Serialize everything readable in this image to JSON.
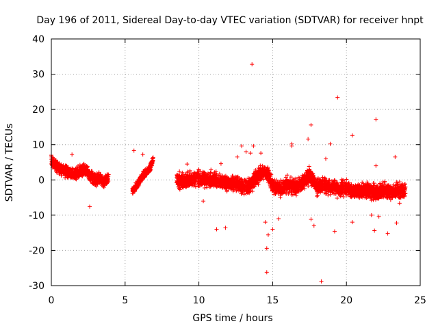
{
  "chart_data": {
    "type": "scatter",
    "title": "Day 196 of 2011, Sidereal Day-to-day VTEC variation (SDTVAR) for receiver hnpt",
    "xlabel": "GPS time / hours",
    "ylabel": "SDTVAR / TECUs",
    "xlim": [
      0,
      25
    ],
    "ylim": [
      -30,
      40
    ],
    "xticks": [
      0,
      5,
      10,
      15,
      20,
      25
    ],
    "yticks": [
      -30,
      -20,
      -10,
      0,
      10,
      20,
      30,
      40
    ],
    "grid": true,
    "marker": "+",
    "color": "#ff0000",
    "segments": [
      {
        "name": "0-4h",
        "x": [
          0.0,
          0.3,
          0.6,
          0.9,
          1.2,
          1.5,
          1.8,
          2.1,
          2.4,
          2.7,
          3.0,
          3.3,
          3.6,
          3.9
        ],
        "y": [
          5.5,
          4.0,
          3.0,
          2.5,
          2.0,
          1.5,
          2.0,
          3.0,
          2.5,
          1.0,
          0.0,
          0.5,
          -0.5,
          0.5
        ],
        "spread": 1.5
      },
      {
        "name": "5.5-6.9h",
        "x": [
          5.5,
          5.7,
          5.9,
          6.1,
          6.3,
          6.5,
          6.7,
          6.9
        ],
        "y": [
          -3.0,
          -2.0,
          -1.0,
          0.5,
          1.5,
          2.5,
          3.5,
          6.0
        ],
        "spread": 1.0
      },
      {
        "name": "8.5-24h",
        "x": [
          8.5,
          9.0,
          9.5,
          10.0,
          10.5,
          11.0,
          11.5,
          12.0,
          12.5,
          13.0,
          13.5,
          14.0,
          14.5,
          15.0,
          15.5,
          16.0,
          16.5,
          17.0,
          17.5,
          18.0,
          18.5,
          19.0,
          19.5,
          20.0,
          20.5,
          21.0,
          21.5,
          22.0,
          22.5,
          23.0,
          23.5,
          24.0
        ],
        "y": [
          0.0,
          -0.5,
          0.0,
          0.5,
          0.0,
          0.0,
          -0.5,
          -1.0,
          -1.0,
          -2.0,
          -1.5,
          1.0,
          3.0,
          -1.5,
          -2.5,
          -1.5,
          -2.0,
          -1.0,
          1.5,
          -2.0,
          -1.5,
          -2.0,
          -2.5,
          -2.5,
          -3.0,
          -3.0,
          -3.0,
          -3.5,
          -3.0,
          -3.5,
          -3.0,
          -3.0
        ],
        "spread": 2.0
      }
    ],
    "outliers": [
      [
        0.0,
        7.0
      ],
      [
        1.4,
        7.2
      ],
      [
        2.6,
        -7.6
      ],
      [
        5.6,
        8.3
      ],
      [
        6.2,
        7.2
      ],
      [
        9.2,
        4.5
      ],
      [
        10.3,
        -6.0
      ],
      [
        11.2,
        -14.0
      ],
      [
        11.8,
        -13.6
      ],
      [
        11.5,
        4.6
      ],
      [
        12.6,
        6.5
      ],
      [
        12.9,
        9.6
      ],
      [
        13.2,
        8.0
      ],
      [
        13.5,
        7.6
      ],
      [
        13.6,
        32.8
      ],
      [
        13.7,
        9.6
      ],
      [
        14.2,
        7.6
      ],
      [
        14.5,
        -12.0
      ],
      [
        14.6,
        -19.4
      ],
      [
        14.6,
        -26.2
      ],
      [
        14.7,
        -15.6
      ],
      [
        15.0,
        -14.0
      ],
      [
        15.4,
        -11.0
      ],
      [
        16.3,
        9.6
      ],
      [
        16.3,
        10.2
      ],
      [
        17.4,
        11.6
      ],
      [
        17.6,
        15.6
      ],
      [
        17.6,
        -11.2
      ],
      [
        17.8,
        -13.0
      ],
      [
        18.3,
        -28.8
      ],
      [
        18.6,
        6.0
      ],
      [
        18.9,
        10.2
      ],
      [
        19.2,
        -14.6
      ],
      [
        19.4,
        23.4
      ],
      [
        20.4,
        12.6
      ],
      [
        20.4,
        -12.0
      ],
      [
        21.7,
        -10.0
      ],
      [
        22.0,
        17.2
      ],
      [
        22.0,
        4.0
      ],
      [
        21.9,
        -14.4
      ],
      [
        22.2,
        -10.4
      ],
      [
        22.8,
        -15.2
      ],
      [
        23.3,
        6.5
      ],
      [
        23.4,
        -12.2
      ],
      [
        23.6,
        -6.6
      ]
    ]
  }
}
